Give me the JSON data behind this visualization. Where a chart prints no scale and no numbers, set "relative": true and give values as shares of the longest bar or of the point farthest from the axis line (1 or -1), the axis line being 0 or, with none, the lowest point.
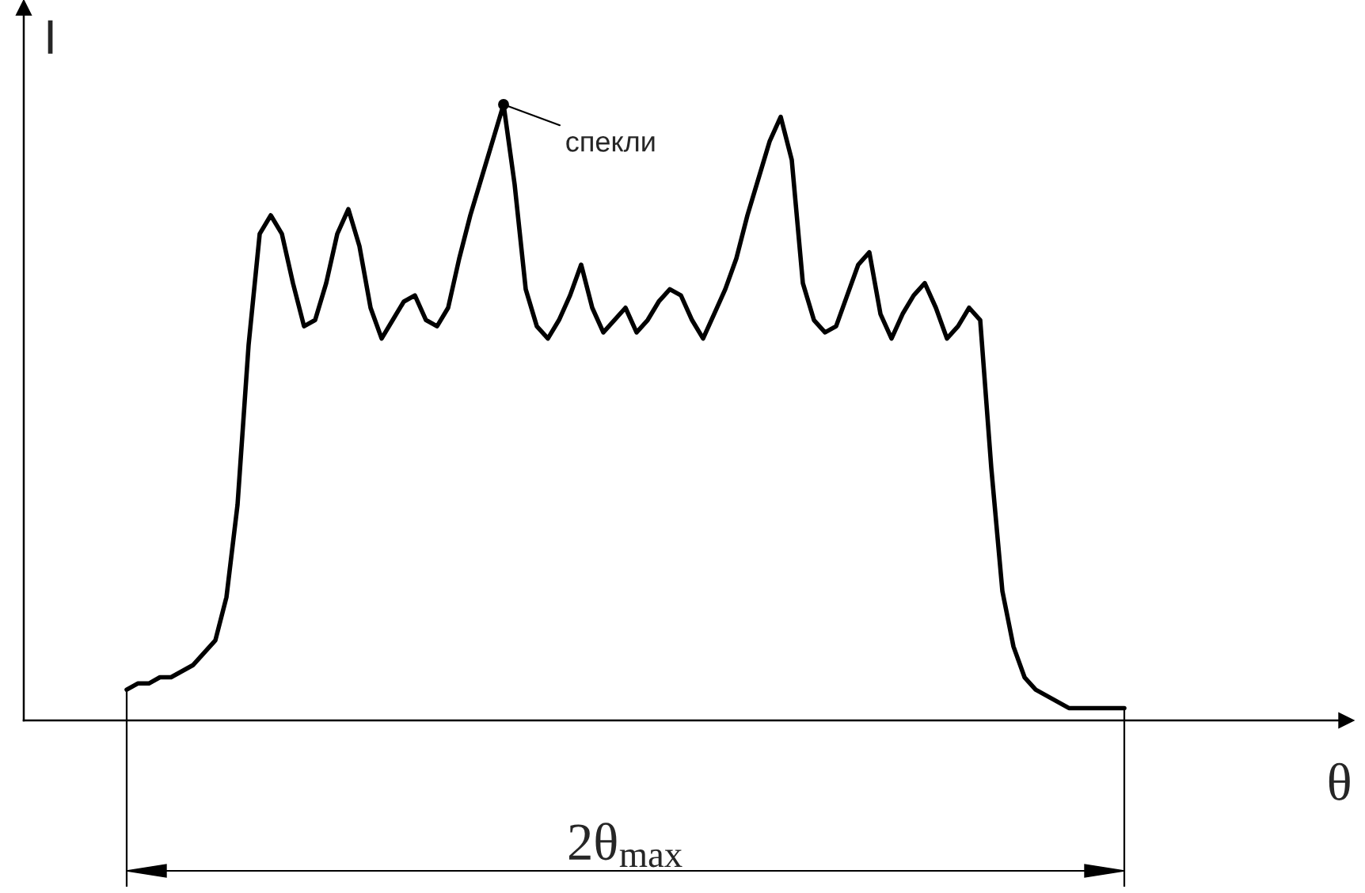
{
  "chart_data": {
    "type": "line",
    "relative": true,
    "xlabel": "θ",
    "ylabel": "I",
    "categories": [
      null,
      null,
      null,
      null,
      null,
      null,
      null,
      null,
      null,
      null,
      null,
      null,
      null,
      null,
      null,
      null,
      null,
      null,
      null,
      null,
      null,
      null,
      null,
      null,
      null,
      null,
      null,
      null,
      null,
      null,
      null,
      null,
      null,
      null,
      null,
      null,
      null,
      null,
      null,
      null,
      null,
      null,
      null,
      null,
      null,
      null,
      null,
      null,
      null,
      null,
      null,
      null,
      null,
      null,
      null,
      null,
      null,
      null,
      null,
      null,
      null,
      null,
      null,
      null,
      null,
      null,
      null,
      null,
      null,
      null,
      null,
      null,
      null,
      null,
      null,
      null,
      null,
      null,
      null,
      null,
      null,
      null,
      null,
      null,
      null,
      null,
      null,
      null,
      null,
      null,
      null
    ],
    "series": [
      {
        "color": "#000000",
        "values": [
          0.05,
          0.06,
          0.06,
          0.07,
          0.07,
          0.08,
          0.09,
          0.11,
          0.13,
          0.2,
          0.35,
          0.61,
          0.79,
          0.82,
          0.79,
          0.71,
          0.64,
          0.65,
          0.71,
          0.79,
          0.83,
          0.77,
          0.67,
          0.62,
          0.65,
          0.68,
          0.69,
          0.65,
          0.64,
          0.67,
          0.75,
          0.82,
          0.88,
          0.94,
          1.0,
          0.87,
          0.7,
          0.64,
          0.62,
          0.65,
          0.69,
          0.74,
          0.67,
          0.63,
          0.65,
          0.67,
          0.63,
          0.65,
          0.68,
          0.7,
          0.69,
          0.65,
          0.62,
          0.66,
          0.7,
          0.75,
          0.82,
          0.88,
          0.94,
          0.98,
          0.91,
          0.71,
          0.65,
          0.63,
          0.64,
          0.69,
          0.74,
          0.76,
          0.66,
          0.62,
          0.66,
          0.69,
          0.71,
          0.67,
          0.62,
          0.64,
          0.67,
          0.65,
          0.41,
          0.21,
          0.12,
          0.07,
          0.05,
          0.04,
          0.03,
          0.02,
          0.02,
          0.02,
          0.02,
          0.02,
          0.02
        ]
      }
    ],
    "annotations": [
      "спекли",
      "2θ$_{max}$"
    ]
  }
}
